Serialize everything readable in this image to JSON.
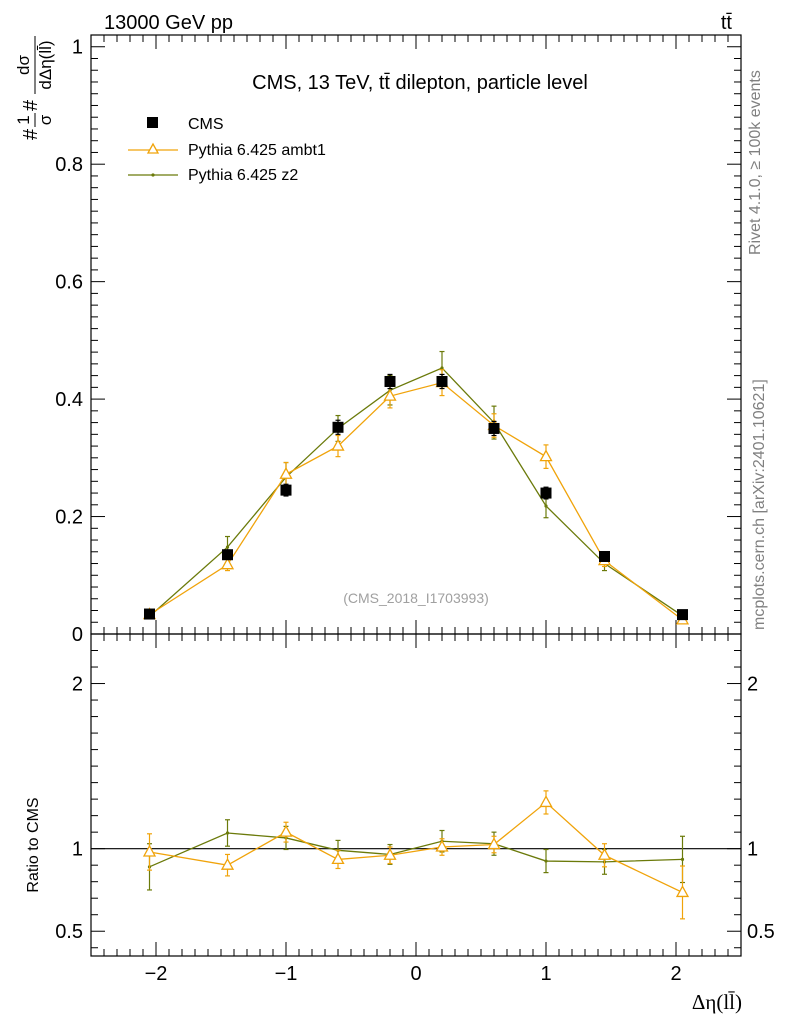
{
  "header": {
    "left": "13000 GeV pp",
    "right": "tt̄"
  },
  "side_labels": {
    "rivet": "Rivet 4.1.0, ≥ 100k events",
    "mcplots": "mcplots.cern.ch [arXiv:2401.10621]"
  },
  "chart_data": [
    {
      "type": "scatter",
      "title": "CMS, 13 TeV, tt̄ dilepton, particle level",
      "watermark": "(CMS_2018_I1703993)",
      "ylabel": "#1/σ# dσ/dΔη(ll̄)",
      "ylabel_parts": {
        "prefix": "#",
        "num1": "1",
        "den1": "σ",
        "mid": "#",
        "num2": "dσ",
        "den2": "dΔη(ll̄)"
      },
      "xlabel": "Δη(ll̄)",
      "xlim": [
        -2.5,
        2.5
      ],
      "ylim": [
        0,
        1.02
      ],
      "yticks": [
        0,
        0.2,
        0.4,
        0.6,
        0.8,
        1
      ],
      "ytick_labels": [
        "0",
        "0.2",
        "0.4",
        "0.6",
        "0.8",
        "1"
      ],
      "legend": "top-left",
      "series": [
        {
          "name": "CMS",
          "color": "#000000",
          "marker": "square",
          "x": [
            -2.05,
            -1.45,
            -1.0,
            -0.6,
            -0.2,
            0.2,
            0.6,
            1.0,
            1.45,
            2.05
          ],
          "y": [
            0.034,
            0.135,
            0.245,
            0.352,
            0.43,
            0.43,
            0.35,
            0.24,
            0.132,
            0.033
          ],
          "err": [
            0.003,
            0.008,
            0.01,
            0.012,
            0.012,
            0.012,
            0.012,
            0.01,
            0.008,
            0.003
          ]
        },
        {
          "name": "Pythia 6.425 ambt1",
          "color": "#f0a30a",
          "marker": "triangle",
          "x": [
            -2.05,
            -1.45,
            -1.0,
            -0.6,
            -0.2,
            0.2,
            0.6,
            1.0,
            1.45,
            2.05
          ],
          "y": [
            0.033,
            0.118,
            0.272,
            0.32,
            0.405,
            0.428,
            0.355,
            0.302,
            0.125,
            0.024
          ],
          "err": [
            0.004,
            0.01,
            0.02,
            0.018,
            0.02,
            0.022,
            0.02,
            0.02,
            0.01,
            0.004
          ]
        },
        {
          "name": "Pythia 6.425 z2",
          "color": "#6b7a0a",
          "marker": "dot",
          "x": [
            -2.05,
            -1.45,
            -1.0,
            -0.6,
            -0.2,
            0.2,
            0.6,
            1.0,
            1.45,
            2.05
          ],
          "y": [
            0.03,
            0.148,
            0.267,
            0.35,
            0.415,
            0.453,
            0.36,
            0.218,
            0.12,
            0.031
          ],
          "err": [
            0.004,
            0.018,
            0.025,
            0.022,
            0.025,
            0.028,
            0.028,
            0.02,
            0.012,
            0.004
          ]
        }
      ]
    },
    {
      "type": "scatter",
      "ylabel": "Ratio to CMS",
      "xlabel": "Δη(ll̄)",
      "xlim": [
        -2.5,
        2.5
      ],
      "ylim": [
        0.35,
        2.3
      ],
      "yticks": [
        0.5,
        1,
        2
      ],
      "ytick_labels": [
        "0.5",
        "1",
        "2"
      ],
      "xticks": [
        -2,
        -1,
        0,
        1,
        2
      ],
      "xtick_labels": [
        "−2",
        "−1",
        "0",
        "1",
        "2"
      ],
      "reference": 1,
      "series": [
        {
          "name": "Pythia 6.425 ambt1",
          "color": "#f0a30a",
          "marker": "triangle",
          "x": [
            -2.05,
            -1.45,
            -1.0,
            -0.6,
            -0.2,
            0.2,
            0.6,
            1.0,
            1.45,
            2.05
          ],
          "y": [
            0.98,
            0.9,
            1.1,
            0.935,
            0.96,
            1.01,
            1.025,
            1.28,
            0.96,
            0.735
          ],
          "err": [
            0.11,
            0.065,
            0.06,
            0.055,
            0.05,
            0.05,
            0.05,
            0.07,
            0.07,
            0.16
          ]
        },
        {
          "name": "Pythia 6.425 z2",
          "color": "#6b7a0a",
          "marker": "dot",
          "x": [
            -2.05,
            -1.45,
            -1.0,
            -0.6,
            -0.2,
            0.2,
            0.6,
            1.0,
            1.45,
            2.05
          ],
          "y": [
            0.89,
            1.095,
            1.065,
            0.99,
            0.965,
            1.045,
            1.03,
            0.925,
            0.92,
            0.935
          ],
          "err": [
            0.14,
            0.08,
            0.07,
            0.06,
            0.06,
            0.065,
            0.07,
            0.07,
            0.075,
            0.14
          ]
        }
      ]
    }
  ]
}
